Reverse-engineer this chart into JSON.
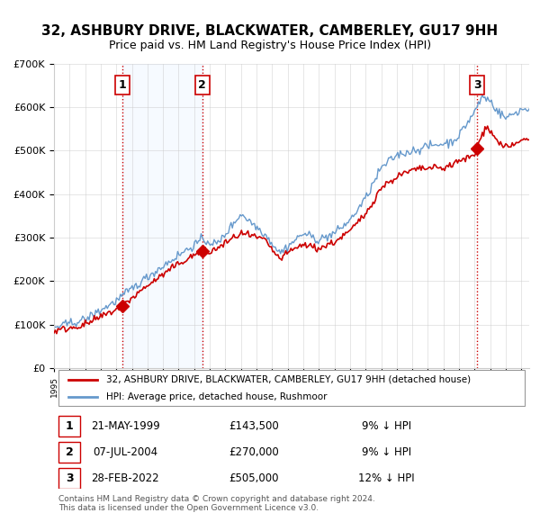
{
  "title": "32, ASHBURY DRIVE, BLACKWATER, CAMBERLEY, GU17 9HH",
  "subtitle": "Price paid vs. HM Land Registry's House Price Index (HPI)",
  "title_fontsize": 11,
  "subtitle_fontsize": 9,
  "ylabel": "",
  "xlabel": "",
  "ylim": [
    0,
    700000
  ],
  "yticks": [
    0,
    100000,
    200000,
    300000,
    400000,
    500000,
    600000,
    700000
  ],
  "ytick_labels": [
    "£0",
    "£100K",
    "£200K",
    "£300K",
    "£400K",
    "£500K",
    "£600K",
    "£700K"
  ],
  "hpi_color": "#6699cc",
  "price_color": "#cc0000",
  "sale_marker_color": "#cc0000",
  "sale1_date": 1999.38,
  "sale1_price": 143500,
  "sale2_date": 2004.52,
  "sale2_price": 270000,
  "sale3_date": 2022.16,
  "sale3_price": 505000,
  "vline_color": "#cc0000",
  "shade_color": "#ddeeff",
  "grid_color": "#cccccc",
  "bg_color": "#ffffff",
  "legend_house": "32, ASHBURY DRIVE, BLACKWATER, CAMBERLEY, GU17 9HH (detached house)",
  "legend_hpi": "HPI: Average price, detached house, Rushmoor",
  "table_data": [
    {
      "num": "1",
      "date": "21-MAY-1999",
      "price": "£143,500",
      "hpi": "9% ↓ HPI"
    },
    {
      "num": "2",
      "date": "07-JUL-2004",
      "price": "£270,000",
      "hpi": "9% ↓ HPI"
    },
    {
      "num": "3",
      "date": "28-FEB-2022",
      "price": "£505,000",
      "hpi": "12% ↓ HPI"
    }
  ],
  "footnote": "Contains HM Land Registry data © Crown copyright and database right 2024.\nThis data is licensed under the Open Government Licence v3.0.",
  "xstart": 1995.0,
  "xend": 2025.5
}
